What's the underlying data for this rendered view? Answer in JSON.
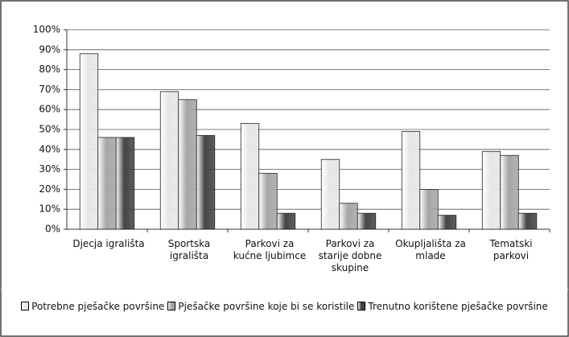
{
  "chart_data": {
    "type": "bar",
    "categories": [
      "Djecja igrališta",
      "Sportska igrališta",
      "Parkovi za kućne ljubimce",
      "Parkovi za starije dobne skupine",
      "Okupljališta za mlade",
      "Tematski parkovi"
    ],
    "series": [
      {
        "name": "Potrebne pješačke površine",
        "color": "#e6e6e6",
        "values": [
          88,
          69,
          53,
          35,
          49,
          39
        ]
      },
      {
        "name": "Pješačke površine koje bi se koristile",
        "color": "#a6a6a6",
        "values": [
          46,
          65,
          28,
          13,
          20,
          37
        ]
      },
      {
        "name": "Trenutno korištene pješačke površine",
        "color": "#444444",
        "values": [
          46,
          47,
          8,
          8,
          7,
          8
        ]
      }
    ],
    "ylim": [
      0,
      100
    ],
    "yticks": [
      {
        "value": 0,
        "label": "0%"
      },
      {
        "value": 10,
        "label": "10%"
      },
      {
        "value": 20,
        "label": "20%"
      },
      {
        "value": 30,
        "label": "30%"
      },
      {
        "value": 40,
        "label": "40%"
      },
      {
        "value": 50,
        "label": "50%"
      },
      {
        "value": 60,
        "label": "60%"
      },
      {
        "value": 70,
        "label": "70%"
      },
      {
        "value": 80,
        "label": "80%"
      },
      {
        "value": 90,
        "label": "90%"
      },
      {
        "value": 100,
        "label": "100%"
      }
    ],
    "grid": true,
    "legend": "bottom"
  }
}
